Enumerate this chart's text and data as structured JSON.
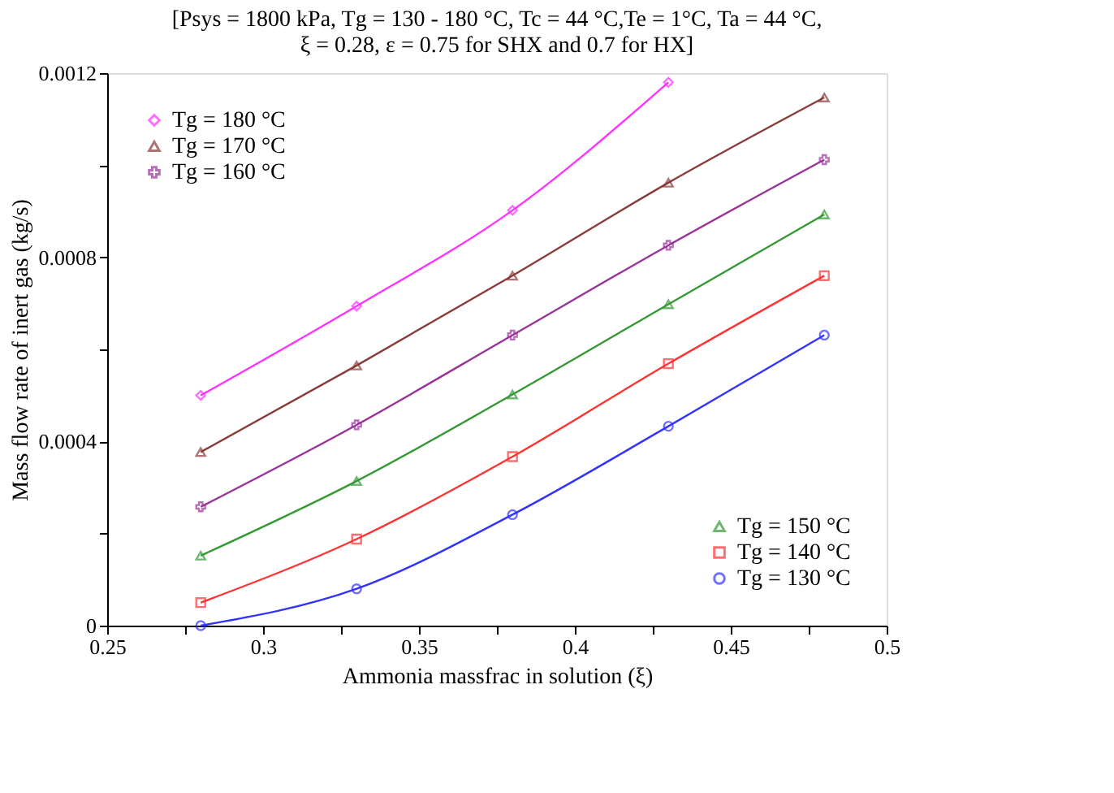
{
  "chart_data": {
    "type": "line",
    "title": [
      "[Psys = 1800 kPa, Tg = 130 - 180 °C, Tc = 44 °C,Te = 1°C, Ta = 44 °C,",
      "ξ = 0.28, ε = 0.75 for SHX and 0.7 for HX]"
    ],
    "xlabel": "Ammonia massfrac in solution (ξ)",
    "ylabel": "Mass flow rate of inert gas (kg/s)",
    "x": [
      0.28,
      0.33,
      0.38,
      0.43,
      0.48
    ],
    "xlim": [
      0.25,
      0.5
    ],
    "xticks": [
      0.25,
      {
        "value": 0.275,
        "label": null
      },
      0.3,
      {
        "value": 0.325,
        "label": null
      },
      0.35,
      {
        "value": 0.375,
        "label": null
      },
      0.4,
      {
        "value": 0.425,
        "label": null
      },
      0.45,
      {
        "value": 0.475,
        "label": null
      },
      0.5
    ],
    "ylim": [
      0,
      0.0012
    ],
    "yticks": [
      0,
      {
        "value": 0.0002,
        "label": null
      },
      0.0004,
      {
        "value": 0.0006,
        "label": null
      },
      0.0008,
      {
        "value": 0.001,
        "label": null
      },
      0.0012
    ],
    "grid": false,
    "line_style": "solid",
    "legend": [
      "top left",
      "top left",
      "top left",
      "bottom right",
      "bottom right",
      "bottom right"
    ],
    "series": [
      {
        "name": "Tg = 180 °C",
        "color": "#ff33ff",
        "marker": "diamond",
        "values": [
          0.0005,
          0.000694,
          0.000902,
          0.00118,
          null
        ]
      },
      {
        "name": "Tg = 170 °C",
        "color": "#8b3a3a",
        "marker": "triangle",
        "values": [
          0.000377,
          0.000565,
          0.00076,
          0.000962,
          0.001147
        ]
      },
      {
        "name": "Tg = 160 °C",
        "color": "#993399",
        "marker": "cross",
        "values": [
          0.000258,
          0.000436,
          0.000631,
          0.000826,
          0.001012
        ]
      },
      {
        "name": "Tg = 150 °C",
        "color": "#339933",
        "marker": "triangle",
        "values": [
          0.000152,
          0.000314,
          0.000502,
          0.000698,
          0.000893
        ]
      },
      {
        "name": "Tg = 140 °C",
        "color": "#ff3333",
        "marker": "square",
        "values": [
          5e-05,
          0.000188,
          0.000367,
          0.000569,
          0.00076
        ]
      },
      {
        "name": "Tg = 130 °C",
        "color": "#3333ff",
        "marker": "circle",
        "values": [
          0.0,
          8e-05,
          0.000241,
          0.000433,
          0.000631
        ]
      }
    ]
  }
}
